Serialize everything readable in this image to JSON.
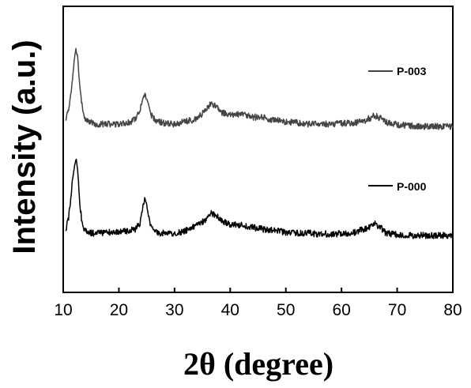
{
  "chart_data": {
    "type": "line",
    "title": "",
    "xlabel": "2θ (degree)",
    "ylabel": "Intensity (a.u.)",
    "xlim": [
      10,
      80
    ],
    "x_ticks": [
      10,
      20,
      30,
      40,
      50,
      60,
      70,
      80
    ],
    "y_ticks_shown": false,
    "grid": false,
    "legend": "inline labels next to each trace",
    "series": [
      {
        "name": "P-003",
        "color": "#444444",
        "x": [
          10.5,
          11,
          11.5,
          12,
          12.3,
          12.6,
          13,
          13.5,
          14,
          15,
          16,
          18,
          20,
          22,
          23,
          23.8,
          24.3,
          24.7,
          25.2,
          25.8,
          26.5,
          28,
          30,
          32,
          34,
          35.5,
          36.5,
          37.5,
          38.5,
          40,
          42,
          44,
          46,
          48,
          50,
          52,
          54,
          56,
          58,
          60,
          62,
          64,
          65,
          66,
          67,
          68,
          70,
          72,
          74,
          76,
          78,
          80
        ],
        "y": [
          150,
          138,
          112,
          75,
          62,
          73,
          112,
          140,
          150,
          155,
          157,
          157,
          157,
          155,
          150,
          138,
          124,
          120,
          130,
          145,
          152,
          156,
          157,
          154,
          150,
          140,
          132,
          134,
          142,
          146,
          144,
          148,
          149,
          152,
          154,
          155,
          157,
          156,
          157,
          156,
          156,
          153,
          150,
          146,
          150,
          155,
          158,
          159,
          160,
          160,
          160,
          160
        ]
      },
      {
        "name": "P-000",
        "color": "#000000",
        "x": [
          10.5,
          11,
          11.5,
          12,
          12.3,
          12.6,
          13,
          13.5,
          14,
          15,
          16,
          18,
          20,
          22,
          23,
          23.8,
          24.3,
          24.7,
          25.2,
          25.8,
          26.5,
          28,
          30,
          32,
          34,
          35.5,
          36.5,
          37.5,
          38.5,
          40,
          42,
          44,
          46,
          48,
          50,
          52,
          54,
          56,
          58,
          60,
          62,
          64,
          65,
          66,
          67,
          68,
          70,
          72,
          74,
          76,
          78,
          80
        ],
        "y": [
          290,
          275,
          240,
          210,
          200,
          215,
          260,
          288,
          293,
          295,
          295,
          294,
          293,
          292,
          290,
          282,
          262,
          250,
          268,
          288,
          294,
          295,
          295,
          292,
          285,
          278,
          270,
          272,
          280,
          284,
          285,
          288,
          290,
          292,
          294,
          295,
          295,
          296,
          296,
          296,
          295,
          290,
          287,
          283,
          288,
          295,
          297,
          298,
          298,
          298,
          298,
          298
        ]
      }
    ]
  }
}
